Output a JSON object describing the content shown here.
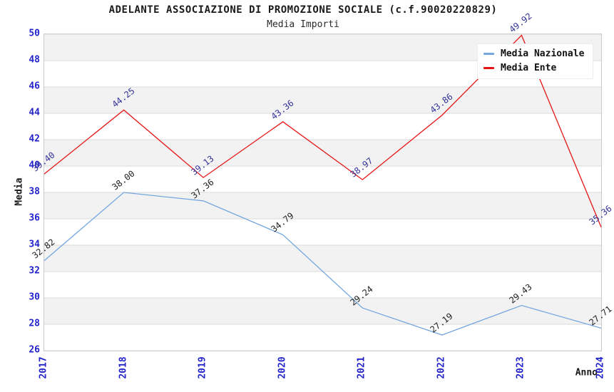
{
  "title": "ADELANTE ASSOCIAZIONE DI PROMOZIONE SOCIALE (c.f.90020220829)",
  "subtitle": "Media Importi",
  "legend": {
    "items": [
      {
        "label": "Media Nazionale",
        "color": "#74a7de"
      },
      {
        "label": "Media Ente",
        "color": "#e51515"
      }
    ]
  },
  "colors": {
    "tick_label": "#2323cc",
    "band_fill": "#f2f2f2",
    "gridline": "#d9d9d9",
    "plot_border": "#c9c9c9",
    "nazionale_line": "#74a7de",
    "nazionale_label": "#222222",
    "ente_line": "#e51515",
    "ente_label": "#333399"
  },
  "chart_data": {
    "type": "line",
    "title": "ADELANTE ASSOCIAZIONE DI PROMOZIONE SOCIALE (c.f.90020220829)",
    "subtitle": "Media Importi",
    "xlabel": "Anno",
    "ylabel": "Media",
    "x": [
      2017,
      2018,
      2019,
      2020,
      2021,
      2022,
      2023,
      2024
    ],
    "xticks": [
      "2017",
      "2018",
      "2019",
      "2020",
      "2021",
      "2022",
      "2023",
      "2024"
    ],
    "yticks": [
      26,
      28,
      30,
      32,
      34,
      36,
      38,
      40,
      42,
      44,
      46,
      48,
      50
    ],
    "ylim": [
      26,
      50
    ],
    "grid": "horizontal-gridlines-with-alternating-bands",
    "legend_position": "top-right-inside",
    "point_labels_visible": true,
    "series": [
      {
        "name": "Media Nazionale",
        "color": "#74a7de",
        "label_color": "#222222",
        "values": [
          32.82,
          38.0,
          37.36,
          34.79,
          29.24,
          27.19,
          29.43,
          27.71
        ]
      },
      {
        "name": "Media Ente",
        "color": "#e51515",
        "label_color": "#333399",
        "values": [
          39.4,
          44.25,
          39.13,
          43.36,
          38.97,
          43.86,
          49.92,
          35.36
        ]
      }
    ]
  }
}
